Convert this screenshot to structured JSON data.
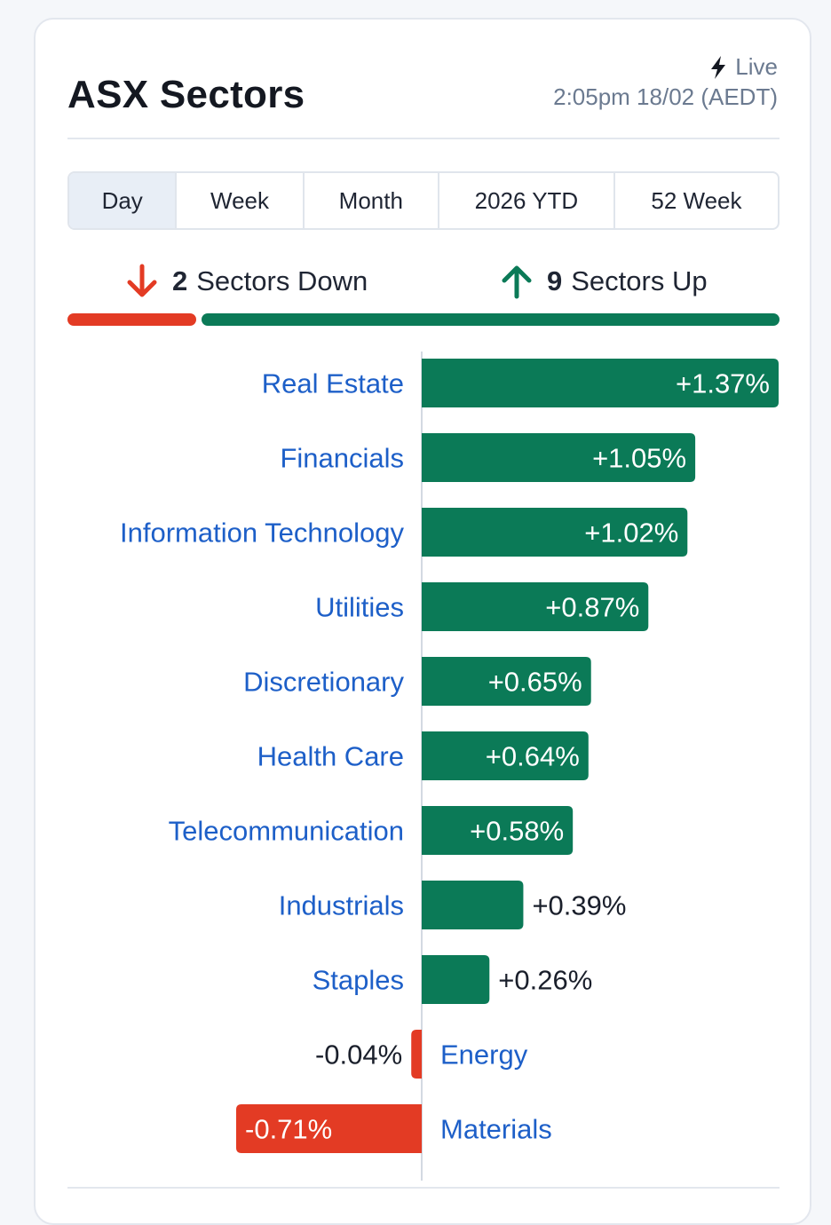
{
  "header": {
    "title": "ASX Sectors",
    "live_label": "Live",
    "timestamp": "2:05pm 18/02 (AEDT)"
  },
  "tabs": [
    {
      "label": "Day",
      "active": true
    },
    {
      "label": "Week",
      "active": false
    },
    {
      "label": "Month",
      "active": false
    },
    {
      "label": "2026 YTD",
      "active": false
    },
    {
      "label": "52 Week",
      "active": false
    }
  ],
  "summary": {
    "down_count": "2",
    "down_label": "Sectors Down",
    "up_count": "9",
    "up_label": "Sectors Up"
  },
  "colors": {
    "up": "#0b7a57",
    "down": "#e33b24",
    "label": "#1d5fc8"
  },
  "chart_data": {
    "type": "bar",
    "orientation": "horizontal",
    "categories": [
      "Real Estate",
      "Financials",
      "Information Technology",
      "Utilities",
      "Discretionary",
      "Health Care",
      "Telecommunication",
      "Industrials",
      "Staples",
      "Energy",
      "Materials"
    ],
    "values": [
      1.37,
      1.05,
      1.02,
      0.87,
      0.65,
      0.64,
      0.58,
      0.39,
      0.26,
      -0.04,
      -0.71
    ],
    "value_labels": [
      "+1.37%",
      "+1.05%",
      "+1.02%",
      "+0.87%",
      "+0.65%",
      "+0.64%",
      "+0.58%",
      "+0.39%",
      "+0.26%",
      "-0.04%",
      "-0.71%"
    ],
    "xlim": [
      -0.71,
      1.37
    ],
    "grid": false,
    "legend": "none"
  }
}
